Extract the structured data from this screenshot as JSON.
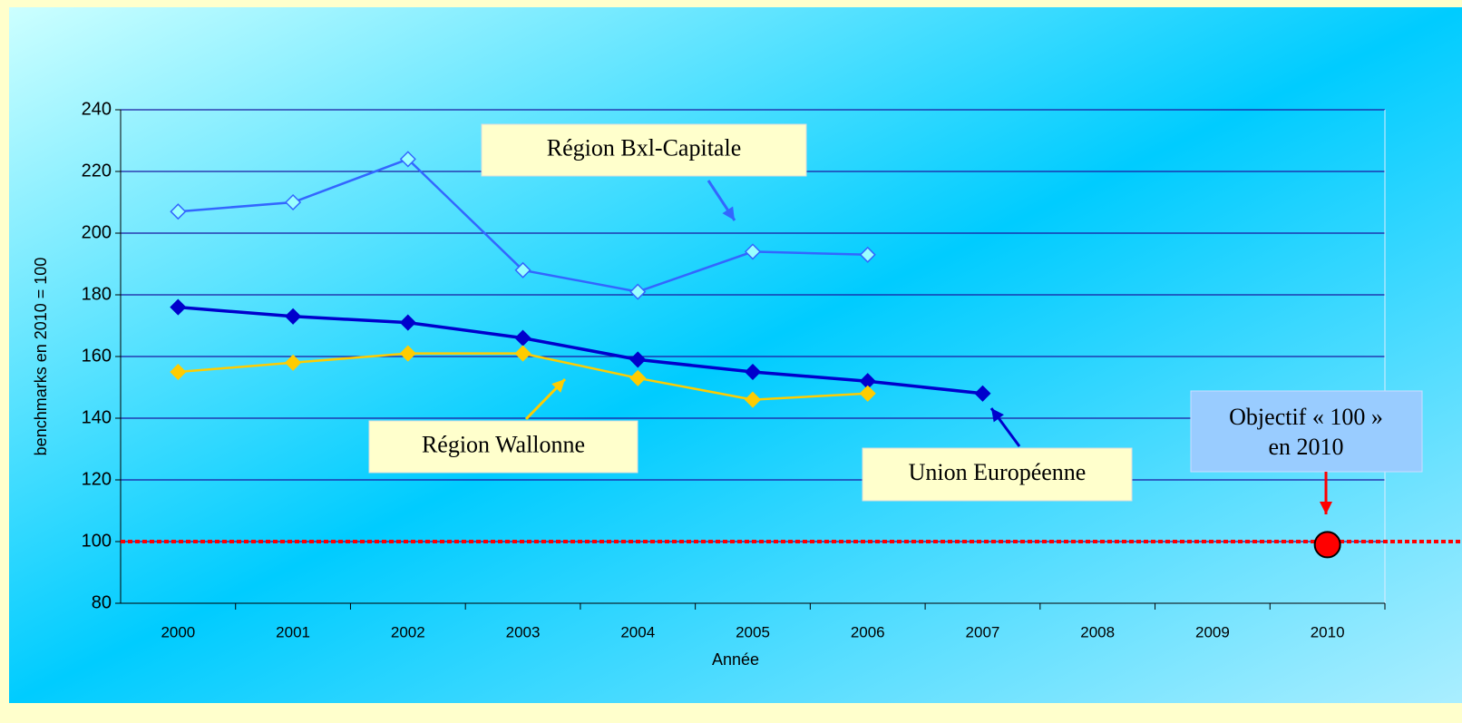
{
  "chart_data": {
    "type": "line",
    "y_label": "benchmarks en 2010 = 100",
    "x_label": "Année",
    "categories": [
      "2000",
      "2001",
      "2002",
      "2003",
      "2004",
      "2005",
      "2006",
      "2007",
      "2008",
      "2009",
      "2010"
    ],
    "series": [
      {
        "name": "Région Bxl-Capitale",
        "color": "#3366ff",
        "marker_fill": "#99ffff",
        "values": [
          207,
          210,
          224,
          188,
          181,
          194,
          193,
          null,
          null,
          null,
          null
        ]
      },
      {
        "name": "Union Européenne",
        "color": "#0000cc",
        "marker_fill": "#0000cc",
        "values": [
          176,
          173,
          171,
          166,
          159,
          155,
          152,
          148,
          null,
          null,
          null
        ]
      },
      {
        "name": "Région Wallonne",
        "color": "#ffcc00",
        "marker_fill": "#ffcc00",
        "values": [
          155,
          158,
          161,
          161,
          153,
          146,
          148,
          null,
          null,
          null,
          null
        ]
      }
    ],
    "target": {
      "color": "#ff0000",
      "values": [
        null,
        null,
        null,
        null,
        null,
        null,
        null,
        null,
        null,
        null,
        99
      ]
    },
    "reference_line": {
      "value": 100,
      "color": "#ff0000"
    },
    "annotation": [
      "Objectif « 100 »",
      "en 2010"
    ],
    "ylim": [
      80,
      240
    ],
    "yticks": [
      80,
      100,
      120,
      140,
      160,
      180,
      200,
      220,
      240
    ],
    "grid": true
  }
}
